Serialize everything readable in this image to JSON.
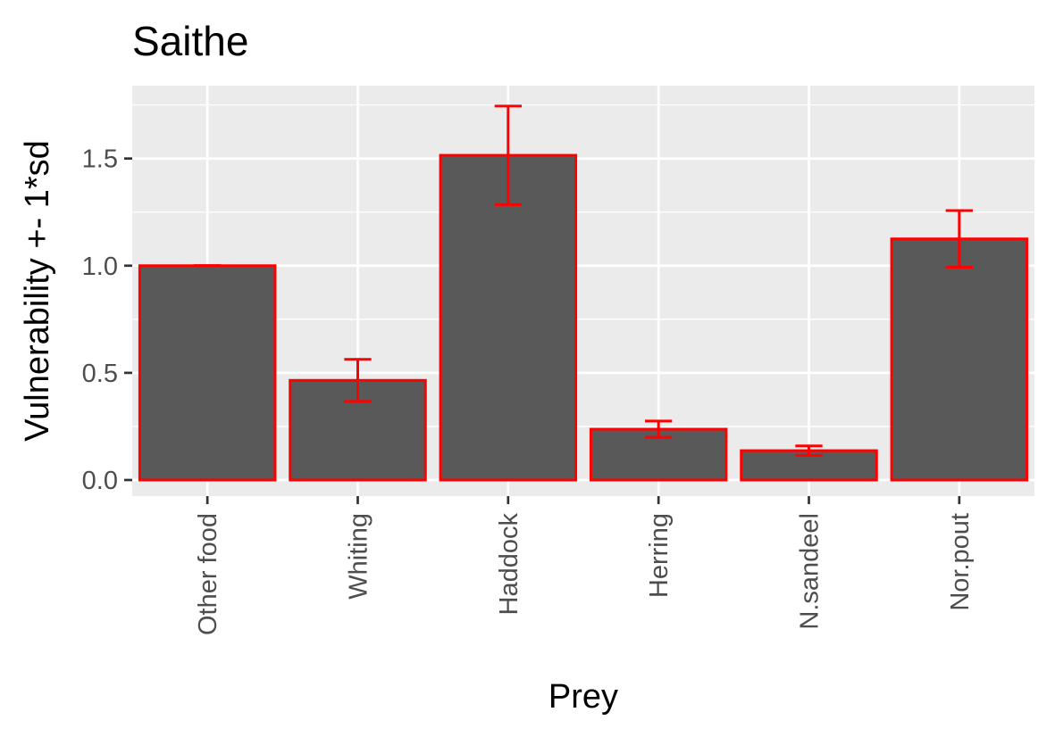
{
  "chart_data": {
    "type": "bar",
    "title": "Saithe",
    "xlabel": "Prey",
    "ylabel": "Vulnerability +- 1*sd",
    "categories": [
      "Other food",
      "Whiting",
      "Haddock",
      "Herring",
      "N.sandeel",
      "Nor.pout"
    ],
    "values": [
      1.0,
      0.465,
      1.515,
      0.237,
      0.137,
      1.125
    ],
    "error_sd": [
      0.0,
      0.098,
      0.23,
      0.038,
      0.022,
      0.132
    ],
    "ylim": [
      -0.075,
      1.84
    ],
    "yticks": [
      0.0,
      0.5,
      1.0,
      1.5
    ],
    "ytick_labels": [
      "0.0",
      "0.5",
      "1.0",
      "1.5"
    ],
    "grid": true,
    "legend": "none",
    "colors": {
      "panel": "#ebebeb",
      "grid": "#ffffff",
      "bar_fill": "#595959",
      "bar_edge": "#ff0000",
      "error_bar": "#ff0000",
      "tick": "#333333"
    }
  }
}
